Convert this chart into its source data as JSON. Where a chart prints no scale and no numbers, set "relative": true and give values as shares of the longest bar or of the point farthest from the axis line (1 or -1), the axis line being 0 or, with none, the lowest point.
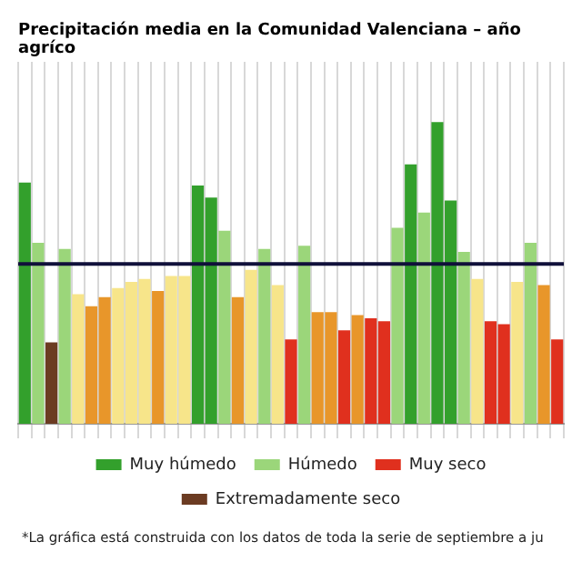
{
  "chart_data": {
    "type": "bar",
    "title": "Precipitación media en la Comunidad Valenciana – año agríco",
    "relative": true,
    "stacked": true,
    "grid": "x",
    "legend": "bottom",
    "categories": [
      null,
      null,
      null,
      null,
      null,
      null,
      null,
      null,
      null,
      null,
      null,
      null,
      null,
      null,
      null,
      null,
      null,
      null,
      null,
      null,
      null,
      null,
      null,
      null,
      null,
      null,
      null,
      null,
      null,
      null,
      null,
      null,
      null,
      null,
      null,
      null,
      null,
      null,
      null,
      null,
      null
    ],
    "series": [
      {
        "name": "Muy húmedo",
        "color": "#33a02c",
        "values": [
          0.8,
          null,
          null,
          null,
          null,
          null,
          null,
          null,
          null,
          null,
          null,
          null,
          null,
          0.79,
          0.75,
          null,
          null,
          null,
          null,
          null,
          null,
          null,
          null,
          null,
          null,
          null,
          null,
          null,
          null,
          0.86,
          null,
          1.0,
          0.74,
          null,
          null,
          null,
          null,
          null,
          null,
          null,
          null
        ]
      },
      {
        "name": "Húmedo",
        "color": "#9bd67a",
        "values": [
          null,
          0.6,
          null,
          0.58,
          null,
          null,
          null,
          null,
          null,
          null,
          null,
          null,
          null,
          null,
          null,
          0.64,
          null,
          null,
          0.58,
          null,
          null,
          0.59,
          null,
          null,
          null,
          null,
          null,
          null,
          0.65,
          null,
          0.7,
          null,
          null,
          0.57,
          null,
          null,
          null,
          null,
          0.6,
          null,
          null
        ]
      },
      {
        "color": "#f7e58a",
        "values": [
          null,
          null,
          null,
          null,
          0.43,
          null,
          null,
          0.45,
          0.47,
          0.48,
          null,
          0.49,
          0.49,
          null,
          null,
          null,
          null,
          0.51,
          null,
          0.46,
          null,
          null,
          null,
          null,
          null,
          null,
          null,
          null,
          null,
          null,
          null,
          null,
          null,
          null,
          0.48,
          null,
          null,
          0.47,
          null,
          null,
          null
        ]
      },
      {
        "color": "#e8962a",
        "values": [
          null,
          null,
          null,
          null,
          null,
          0.39,
          0.42,
          null,
          null,
          null,
          0.44,
          null,
          null,
          null,
          null,
          null,
          0.42,
          null,
          null,
          null,
          null,
          null,
          0.37,
          0.37,
          null,
          0.36,
          null,
          null,
          null,
          null,
          null,
          null,
          null,
          null,
          null,
          null,
          null,
          null,
          null,
          0.46,
          null
        ]
      },
      {
        "name": "Muy seco",
        "color": "#e0301e",
        "values": [
          null,
          null,
          null,
          null,
          null,
          null,
          null,
          null,
          null,
          null,
          null,
          null,
          null,
          null,
          null,
          null,
          null,
          null,
          null,
          null,
          0.28,
          null,
          null,
          null,
          0.31,
          null,
          0.35,
          0.34,
          null,
          null,
          null,
          null,
          null,
          null,
          null,
          0.34,
          0.33,
          null,
          null,
          null,
          0.28
        ]
      },
      {
        "name": "Extremadamente seco",
        "color": "#6b3b22",
        "values": [
          null,
          null,
          0.27,
          null,
          null,
          null,
          null,
          null,
          null,
          null,
          null,
          null,
          null,
          null,
          null,
          null,
          null,
          null,
          null,
          null,
          null,
          null,
          null,
          null,
          null,
          null,
          null,
          null,
          null,
          null,
          null,
          null,
          null,
          null,
          null,
          null,
          null,
          null,
          null,
          null,
          null
        ]
      }
    ],
    "ref_lines": [
      {
        "axis": "y",
        "value": 0.53,
        "color": "#10103a"
      }
    ],
    "annotations": [
      "*La gráfica está construida con los datos de toda la serie de septiembre a ju"
    ]
  }
}
